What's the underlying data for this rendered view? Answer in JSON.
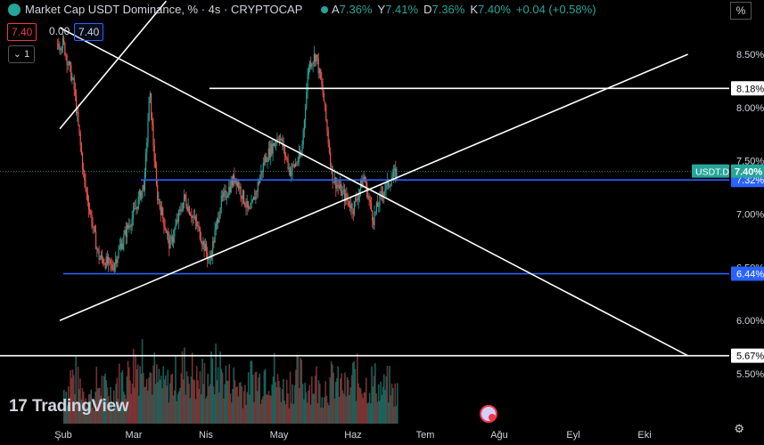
{
  "header": {
    "title": "Market Cap USDT Dominance, % · 4s · CRYPTOCAP",
    "ohlc": [
      {
        "k": "A",
        "v": "7.36%"
      },
      {
        "k": "Y",
        "v": "7.41%"
      },
      {
        "k": "D",
        "v": "7.36%"
      },
      {
        "k": "K",
        "v": "7.40%"
      },
      {
        "k": "",
        "v": "+0.04 (+0.58%)"
      }
    ],
    "price_boxes": [
      "7.40",
      "0.00",
      "7.40"
    ],
    "collapse_label": "1",
    "percent_button": "%"
  },
  "branding": {
    "logo_text": "TradingView",
    "logo_mark": "17"
  },
  "colors": {
    "bg": "#000000",
    "up": "#26a69a",
    "down": "#ef5350",
    "line": "#ffffff",
    "hline": "#2962ff"
  },
  "chart_data": {
    "type": "candlestick",
    "symbol": "USDT.D",
    "timeframe": "4s",
    "y_axis": {
      "min": 5.2,
      "max": 8.8,
      "ticks": [
        "8.50%",
        "8.00%",
        "7.50%",
        "7.00%",
        "6.50%",
        "6.00%",
        "5.50%"
      ],
      "tick_values": [
        8.5,
        8.0,
        7.5,
        7.0,
        6.5,
        6.0,
        5.5
      ]
    },
    "x_axis": {
      "labels": [
        "Şub",
        "Mar",
        "Nis",
        "May",
        "Haz",
        "Tem",
        "Ağu",
        "Eyl",
        "Eki"
      ]
    },
    "price_path": [
      [
        0,
        8.6
      ],
      [
        0.15,
        8.2
      ],
      [
        0.3,
        7.3
      ],
      [
        0.5,
        6.6
      ],
      [
        0.7,
        6.5
      ],
      [
        0.9,
        6.85
      ],
      [
        1.0,
        7.0
      ],
      [
        1.15,
        7.3
      ],
      [
        1.22,
        8.15
      ],
      [
        1.32,
        7.2
      ],
      [
        1.5,
        6.7
      ],
      [
        1.7,
        7.15
      ],
      [
        1.9,
        6.85
      ],
      [
        2.05,
        6.55
      ],
      [
        2.2,
        7.1
      ],
      [
        2.4,
        7.35
      ],
      [
        2.6,
        7.0
      ],
      [
        2.8,
        7.5
      ],
      [
        3.0,
        7.75
      ],
      [
        3.15,
        7.4
      ],
      [
        3.3,
        7.55
      ],
      [
        3.4,
        8.4
      ],
      [
        3.5,
        8.5
      ],
      [
        3.6,
        8.1
      ],
      [
        3.72,
        7.35
      ],
      [
        3.85,
        7.2
      ],
      [
        4.0,
        7.05
      ],
      [
        4.15,
        7.35
      ],
      [
        4.28,
        6.95
      ],
      [
        4.4,
        7.2
      ],
      [
        4.55,
        7.35
      ],
      [
        4.62,
        7.4
      ]
    ],
    "volume_profile": [
      0.45,
      0.6,
      0.5,
      0.4,
      0.35,
      0.5,
      0.45,
      0.4,
      0.55,
      0.6,
      0.75,
      0.8,
      0.9,
      0.65,
      0.55,
      0.5,
      0.55,
      0.6,
      0.7,
      0.65,
      0.55,
      0.6,
      0.65,
      0.7,
      0.6,
      0.55,
      0.5,
      0.45,
      0.6,
      0.55,
      0.7,
      0.65,
      0.5,
      0.45,
      0.55,
      0.6,
      0.5,
      0.55,
      0.45,
      0.5,
      0.55,
      0.5,
      0.45,
      0.6,
      0.55,
      0.5,
      0.55,
      0.45,
      0.5,
      0.4
    ],
    "horizontal_lines": [
      {
        "value": 8.18,
        "label": "8.18%",
        "color": "white"
      },
      {
        "value": 7.32,
        "label": "7.32%",
        "color": "blue"
      },
      {
        "value": 6.44,
        "label": "6.44%",
        "color": "blue"
      },
      {
        "value": 5.67,
        "label": "5.67%",
        "color": "white"
      }
    ],
    "trend_lines": [
      {
        "from": [
          -0.05,
          7.8
        ],
        "to": [
          1.45,
          9.0
        ]
      },
      {
        "from": [
          -0.05,
          8.75
        ],
        "to": [
          8.6,
          5.67
        ]
      },
      {
        "from": [
          -0.05,
          6.0
        ],
        "to": [
          8.6,
          8.5
        ]
      }
    ],
    "last_price": {
      "value": 7.4,
      "label": "7.40%",
      "symbol_label": "USDT.D"
    }
  }
}
